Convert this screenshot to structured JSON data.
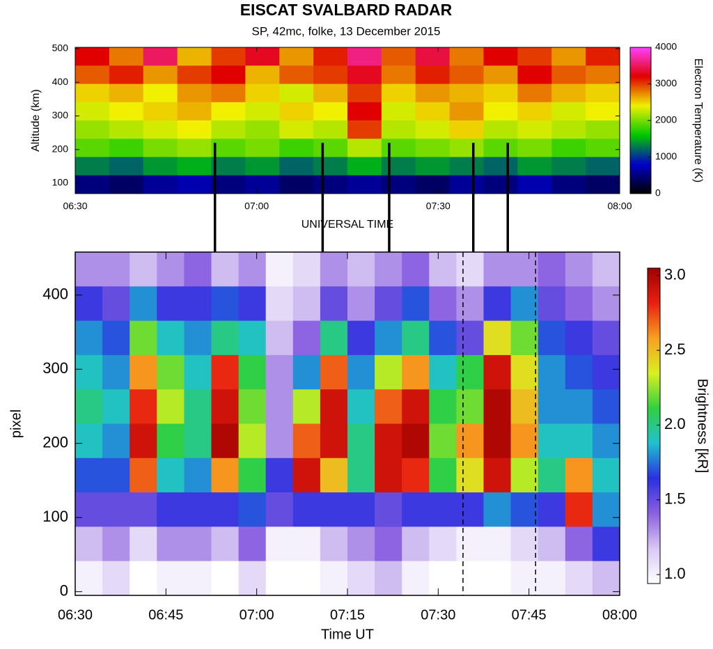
{
  "chart_data": [
    {
      "type": "heatmap",
      "title": "EISCAT SVALBARD RADAR",
      "subtitle": "SP, 42mc, folke, 13 December 2015",
      "ylabel": "Altitude (km)",
      "xlabel": "UNIVERSAL TIME",
      "colorbar_label": "Electron Temperature (K)",
      "xlim": [
        0,
        90
      ],
      "xticks": [
        {
          "value": 0,
          "label": "06:30"
        },
        {
          "value": 30,
          "label": "07:00"
        },
        {
          "value": 60,
          "label": "07:30"
        },
        {
          "value": 90,
          "label": "08:00"
        }
      ],
      "ylim": [
        69,
        504
      ],
      "yticks": [
        100,
        200,
        300,
        400,
        500
      ],
      "clim": [
        0,
        4000
      ],
      "cticks": [
        0,
        1000,
        2000,
        3000,
        4000
      ],
      "colorscale": [
        "#000000",
        "#0000c8",
        "#00c800",
        "#f0f000",
        "#e00000",
        "#ff40ff"
      ],
      "connector_lines_x": [
        23.1,
        40.9,
        51.9,
        65.8,
        71.5
      ],
      "z": [
        [
          3200,
          2800,
          3500,
          2600,
          3000,
          3300,
          2700,
          3100,
          3600,
          2900,
          3400,
          2800,
          3200,
          3000,
          2700,
          3100
        ],
        [
          2900,
          3100,
          2700,
          3000,
          3200,
          2600,
          2900,
          3000,
          3300,
          2800,
          3100,
          2900,
          2700,
          3200,
          2900,
          2800
        ],
        [
          2500,
          2600,
          2400,
          2700,
          2800,
          2500,
          2300,
          2600,
          3000,
          2500,
          2700,
          2600,
          2500,
          2800,
          2600,
          2500
        ],
        [
          2300,
          2400,
          2500,
          2600,
          2400,
          2300,
          2500,
          2400,
          3200,
          2300,
          2500,
          2700,
          2400,
          2500,
          2300,
          2400
        ],
        [
          2100,
          2200,
          2300,
          2400,
          2200,
          2100,
          2300,
          2200,
          3000,
          2200,
          2300,
          2500,
          2200,
          2300,
          2200,
          2100
        ],
        [
          1900,
          1800,
          2000,
          2100,
          1900,
          2000,
          1800,
          1900,
          2200,
          1900,
          2000,
          2100,
          1900,
          2000,
          1800,
          1900
        ],
        [
          1300,
          1200,
          1400,
          1500,
          1300,
          1400,
          1200,
          1300,
          1500,
          1300,
          1400,
          1300,
          1200,
          1400,
          1300,
          1200
        ],
        [
          500,
          400,
          600,
          700,
          500,
          600,
          400,
          500,
          600,
          500,
          400,
          600,
          500,
          700,
          500,
          400
        ]
      ]
    },
    {
      "type": "heatmap",
      "ylabel": "pixel",
      "xlabel": "Time  UT",
      "colorbar_label": "Brightness [kR]",
      "xlim": [
        0,
        90
      ],
      "xticks": [
        {
          "value": 0,
          "label": "06:30"
        },
        {
          "value": 15,
          "label": "06:45"
        },
        {
          "value": 30,
          "label": "07:00"
        },
        {
          "value": 45,
          "label": "07:15"
        },
        {
          "value": 60,
          "label": "07:30"
        },
        {
          "value": 75,
          "label": "07:45"
        },
        {
          "value": 90,
          "label": "08:00"
        }
      ],
      "ylim": [
        -5,
        458
      ],
      "yticks": [
        0,
        100,
        200,
        300,
        400
      ],
      "clim": [
        0.94,
        3.05
      ],
      "cticks": [
        {
          "value": 1,
          "label": "1.0"
        },
        {
          "value": 1.5,
          "label": "1.5"
        },
        {
          "value": 2,
          "label": "2.0"
        },
        {
          "value": 2.5,
          "label": "2.5"
        },
        {
          "value": 3,
          "label": "3.0"
        }
      ],
      "colorscale": [
        "#ffffff",
        "#d8c8f4",
        "#8a60e0",
        "#2a30e0",
        "#20c0d0",
        "#30d040",
        "#d8f020",
        "#f8a020",
        "#e82010",
        "#a00000"
      ],
      "dashed_lines_x": [
        64.1,
        76.1
      ],
      "z": [
        [
          1.3,
          1.3,
          1.2,
          1.3,
          1.4,
          1.2,
          1.3,
          1.0,
          1.1,
          1.3,
          1.2,
          1.3,
          1.4,
          1.2,
          1.1,
          1.3,
          1.3,
          1.4,
          1.3,
          1.2
        ],
        [
          1.6,
          1.5,
          1.8,
          1.6,
          1.6,
          1.7,
          1.6,
          1.1,
          1.2,
          1.5,
          1.3,
          1.5,
          1.7,
          1.4,
          1.3,
          1.6,
          1.8,
          1.5,
          1.4,
          1.3
        ],
        [
          1.8,
          1.7,
          2.2,
          1.9,
          1.8,
          2.0,
          1.9,
          1.2,
          1.4,
          2.0,
          1.6,
          1.8,
          2.0,
          1.7,
          1.5,
          2.4,
          2.2,
          1.7,
          1.6,
          1.5
        ],
        [
          1.9,
          1.8,
          2.6,
          2.2,
          1.9,
          2.8,
          2.1,
          1.3,
          1.8,
          2.7,
          1.8,
          2.3,
          2.6,
          1.9,
          2.1,
          2.9,
          2.4,
          1.8,
          1.7,
          1.6
        ],
        [
          2.0,
          1.9,
          2.8,
          2.3,
          2.0,
          2.9,
          2.2,
          1.3,
          2.3,
          2.9,
          1.9,
          2.7,
          2.9,
          2.1,
          2.2,
          3.0,
          2.5,
          1.8,
          1.8,
          1.7
        ],
        [
          1.9,
          1.8,
          2.9,
          2.1,
          2.0,
          3.0,
          2.3,
          1.3,
          2.7,
          2.9,
          2.0,
          2.9,
          3.0,
          2.2,
          2.6,
          3.0,
          2.6,
          1.9,
          1.9,
          1.8
        ],
        [
          1.7,
          1.7,
          2.7,
          1.9,
          1.8,
          2.6,
          2.1,
          1.6,
          2.9,
          2.5,
          2.0,
          2.9,
          2.8,
          2.1,
          2.4,
          2.9,
          2.3,
          2.0,
          2.6,
          1.9
        ],
        [
          1.5,
          1.5,
          1.5,
          1.6,
          1.6,
          1.6,
          1.7,
          1.5,
          1.6,
          1.6,
          1.6,
          1.5,
          1.6,
          1.6,
          1.6,
          1.8,
          1.7,
          1.6,
          2.8,
          1.8
        ],
        [
          1.2,
          1.3,
          1.1,
          1.3,
          1.3,
          1.2,
          1.4,
          1.0,
          1.0,
          1.2,
          1.3,
          1.4,
          1.2,
          1.1,
          1.0,
          1.0,
          1.1,
          1.2,
          1.4,
          1.6
        ],
        [
          1.0,
          1.1,
          0.9,
          1.0,
          1.0,
          0.9,
          1.1,
          0.9,
          0.9,
          1.0,
          1.1,
          1.2,
          1.0,
          0.9,
          0.9,
          0.9,
          1.0,
          1.0,
          1.1,
          1.2
        ]
      ]
    }
  ]
}
